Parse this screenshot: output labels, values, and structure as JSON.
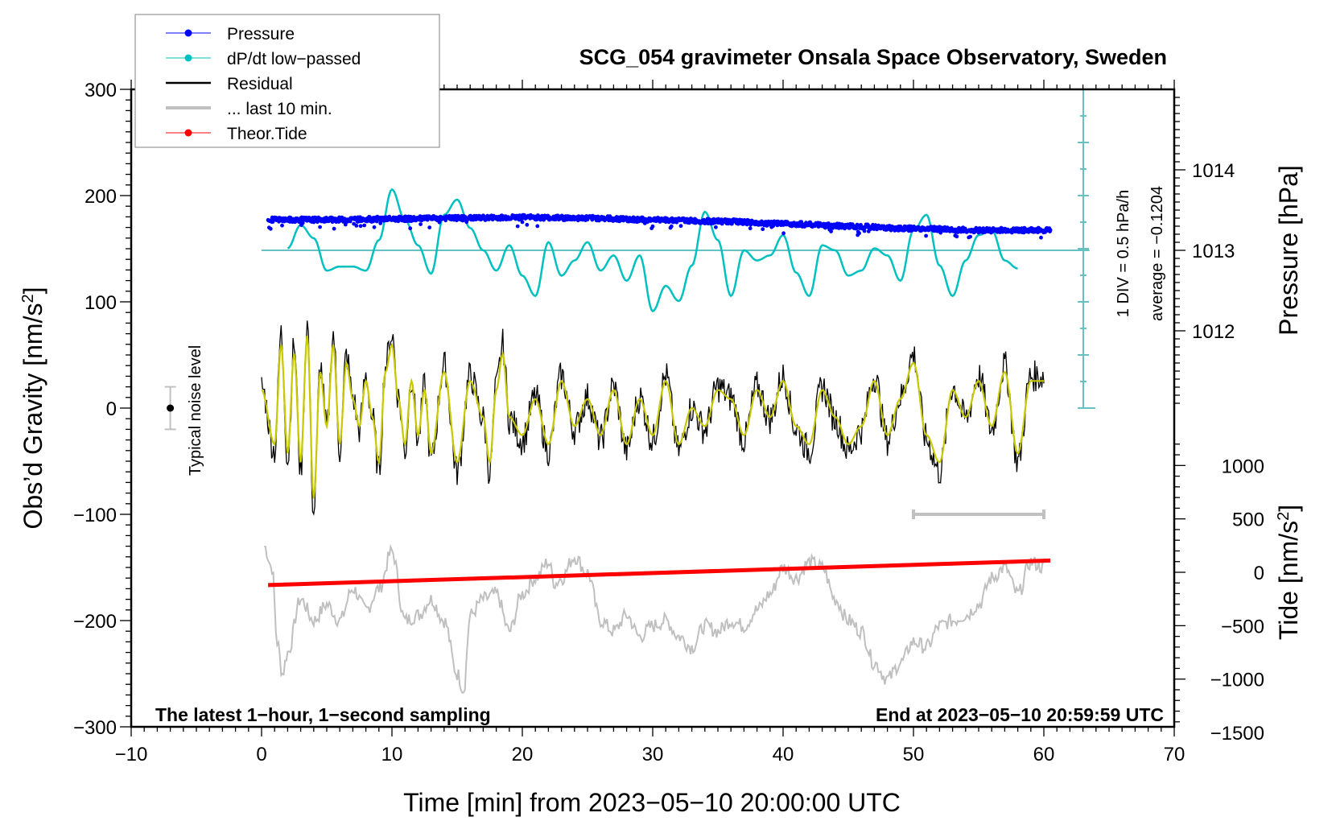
{
  "chart_data": {
    "type": "line",
    "title": "SCG_054 gravimeter Onsala Space Observatory, Sweden",
    "xlabel": "Time [min] from 2023−05−10 20:00:00 UTC",
    "ylabel_left": "Obs’d Gravity [nm/s²]",
    "ylabel_right_top": "Pressure [hPa]",
    "ylabel_right_bottom": "Tide [nm/s²]",
    "xlim": [
      -10,
      70
    ],
    "ylim_left": [
      -300,
      300
    ],
    "ylim_pressure": [
      1011,
      1015
    ],
    "ylim_tide": [
      -1500,
      1500
    ],
    "x_ticks": [
      "−10",
      "0",
      "10",
      "20",
      "30",
      "40",
      "50",
      "60",
      "70"
    ],
    "x_tick_values": [
      -10,
      0,
      10,
      20,
      30,
      40,
      50,
      60,
      70
    ],
    "y_left_ticks": [
      "300",
      "200",
      "100",
      "0",
      "−100",
      "−200",
      "−300"
    ],
    "y_left_tick_values": [
      300,
      200,
      100,
      0,
      -100,
      -200,
      -300
    ],
    "pressure_ticks": [
      "1014",
      "1013",
      "1012"
    ],
    "pressure_tick_values": [
      1014,
      1013,
      1012
    ],
    "tide_ticks": [
      "1000",
      "500",
      "0",
      "−500",
      "−1000",
      "−1500"
    ],
    "tide_tick_values": [
      1000,
      500,
      0,
      -500,
      -1000,
      -1500
    ],
    "legend": {
      "placement": "top-left",
      "entries": [
        {
          "label": "Pressure",
          "color": "#0000ff",
          "style": "line-dot"
        },
        {
          "label": "dP/dt low−passed",
          "color": "#00c0c0",
          "style": "line-dot"
        },
        {
          "label": "Residual",
          "color": "#000000",
          "style": "line"
        },
        {
          "label": "... last 10 min.",
          "color": "#c0c0c0",
          "style": "thick-line"
        },
        {
          "label": "Theor.Tide",
          "color": "#ff0000",
          "style": "line-dot"
        }
      ]
    },
    "annotations": {
      "bottom_left": "The latest 1−hour, 1−second sampling",
      "bottom_right": "End at 2023−05−10 20:59:59 UTC",
      "noise_label": "Typical noise level",
      "noise_level": {
        "x": -7,
        "y": 0,
        "error": 20
      },
      "dpdt_scale": "1 DIV = 0.5 hPa/h",
      "dpdt_average": "average = −0.1204",
      "last10_bar": {
        "x_start": 50,
        "x_end": 60,
        "y": -100
      }
    },
    "series": [
      {
        "name": "Pressure",
        "axis": "pressure",
        "color": "#0000ff",
        "x": [
          0.5,
          5,
          10,
          15,
          20,
          25,
          30,
          35,
          40,
          45,
          50,
          55,
          60.5
        ],
        "values": [
          1013.38,
          1013.38,
          1013.39,
          1013.4,
          1013.41,
          1013.4,
          1013.38,
          1013.36,
          1013.33,
          1013.3,
          1013.27,
          1013.25,
          1013.25
        ]
      },
      {
        "name": "dP/dt low-passed",
        "axis": "dpdt",
        "color": "#00c0c0",
        "baseline_pressure": 1013,
        "x": [
          2,
          3,
          4,
          5,
          6,
          7,
          8,
          9,
          10,
          11,
          12,
          13,
          14,
          15,
          16,
          17,
          18,
          19,
          20,
          21,
          22,
          23,
          24,
          25,
          26,
          27,
          28,
          29,
          30,
          31,
          32,
          33,
          34,
          35,
          36,
          37,
          38,
          39,
          40,
          41,
          42,
          43,
          44,
          45,
          46,
          47,
          48,
          49,
          50,
          51,
          52,
          53,
          54,
          55,
          56,
          57,
          58
        ],
        "values": [
          0.02,
          0.25,
          0.12,
          -0.2,
          -0.16,
          -0.16,
          -0.2,
          0.1,
          0.6,
          0.3,
          0.05,
          -0.23,
          0.35,
          0.5,
          0.22,
          0.0,
          -0.2,
          0.05,
          -0.25,
          -0.45,
          0.08,
          -0.25,
          -0.1,
          0.08,
          -0.2,
          -0.05,
          -0.3,
          -0.05,
          -0.6,
          -0.35,
          -0.5,
          -0.15,
          0.38,
          0.1,
          -0.45,
          0.0,
          -0.1,
          -0.05,
          0.15,
          -0.22,
          -0.45,
          0.05,
          0.0,
          -0.25,
          -0.2,
          0.02,
          -0.05,
          -0.3,
          0.2,
          0.35,
          -0.15,
          -0.45,
          -0.1,
          0.15,
          0.2,
          -0.1,
          -0.18
        ]
      },
      {
        "name": "Residual",
        "axis": "left",
        "color": "#000000",
        "smoothed_color": "#c8c800",
        "x": [
          0,
          1,
          1.5,
          2,
          2.5,
          3,
          3.5,
          4,
          4.5,
          5,
          5.5,
          6,
          6.5,
          7,
          7.5,
          8,
          8.5,
          9,
          9.5,
          10,
          10.5,
          11,
          11.5,
          12,
          12.5,
          13,
          14,
          15,
          16,
          17,
          17.5,
          18,
          18.5,
          19,
          20,
          21,
          22,
          23,
          24,
          25,
          26,
          27,
          28,
          29,
          30,
          31,
          32,
          33,
          34,
          35,
          36,
          37,
          38,
          39,
          40,
          41,
          42,
          43,
          44,
          45,
          46,
          47,
          48,
          49,
          50,
          51,
          52,
          53,
          54,
          55,
          56,
          57,
          58,
          59,
          60
        ],
        "values": [
          20,
          -40,
          70,
          -50,
          60,
          -60,
          80,
          -100,
          40,
          -20,
          70,
          -40,
          50,
          10,
          -20,
          30,
          -10,
          -60,
          40,
          70,
          10,
          -40,
          30,
          -30,
          20,
          -50,
          40,
          -60,
          30,
          -10,
          -60,
          20,
          60,
          -10,
          -30,
          10,
          -40,
          30,
          -20,
          10,
          -30,
          20,
          -40,
          10,
          -30,
          30,
          -40,
          0,
          -20,
          20,
          10,
          -30,
          20,
          -10,
          30,
          -20,
          -40,
          20,
          -10,
          -40,
          -20,
          30,
          -30,
          10,
          50,
          -30,
          -60,
          20,
          -10,
          30,
          -20,
          40,
          -50,
          30,
          30
        ]
      },
      {
        "name": "... last 10 min.",
        "axis": "left",
        "color": "#c0c0c0",
        "description": "Residual of the last 10 minutes, overlaid across the hour",
        "x": [
          0.2,
          0.8,
          1.2,
          1.6,
          2,
          3,
          4,
          5,
          6,
          7,
          8,
          9,
          10,
          11,
          12,
          13,
          14,
          15,
          15.5,
          16,
          17,
          18,
          19,
          20,
          21,
          22,
          22.5,
          23,
          24,
          25,
          26,
          27,
          28,
          29,
          30,
          31,
          32,
          33,
          34,
          35,
          36,
          37,
          38,
          39,
          40,
          41,
          42,
          43,
          44,
          45,
          46,
          47,
          48,
          49,
          50,
          51,
          52,
          53,
          54,
          55,
          56,
          57,
          58,
          59,
          60
        ],
        "values": [
          -130,
          -150,
          -220,
          -250,
          -230,
          -180,
          -200,
          -185,
          -200,
          -170,
          -190,
          -170,
          -135,
          -200,
          -195,
          -180,
          -200,
          -250,
          -265,
          -195,
          -180,
          -175,
          -210,
          -175,
          -160,
          -145,
          -165,
          -160,
          -140,
          -155,
          -200,
          -210,
          -195,
          -215,
          -205,
          -200,
          -215,
          -225,
          -205,
          -210,
          -200,
          -205,
          -190,
          -175,
          -150,
          -160,
          -145,
          -150,
          -180,
          -200,
          -210,
          -240,
          -255,
          -240,
          -220,
          -225,
          -205,
          -200,
          -195,
          -185,
          -160,
          -150,
          -175,
          -145,
          -150
        ]
      },
      {
        "name": "Theor.Tide",
        "axis": "tide",
        "color": "#ff0000",
        "x": [
          0.5,
          60.5
        ],
        "values": [
          -120,
          110
        ]
      }
    ]
  }
}
